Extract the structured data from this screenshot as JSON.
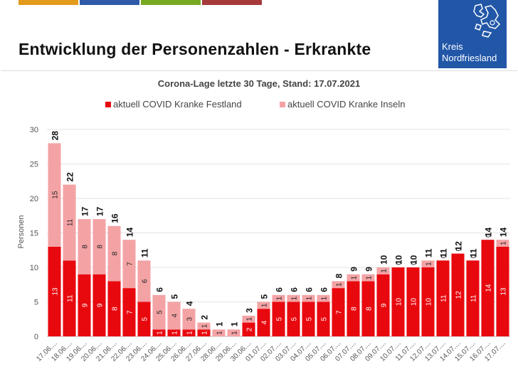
{
  "header": {
    "title": "Entwicklung der Personenzahlen - Erkrankte",
    "bar_colors": [
      "#e39a1b",
      "#2e5aa8",
      "#78a922",
      "#a63a3a"
    ]
  },
  "logo": {
    "line1": "Kreis",
    "line2": "Nordfriesland",
    "color": "#2257a8"
  },
  "chart_data": {
    "type": "bar",
    "stacked": true,
    "title": "Corona-Lage letzte 30 Tage, Stand: 17.07.2021",
    "ylabel": "Personen",
    "xlabel": "",
    "ylim": [
      0,
      30
    ],
    "yticks": [
      0,
      5,
      10,
      15,
      20,
      25,
      30
    ],
    "grid": true,
    "legend_position": "top",
    "categories": [
      "17.06....",
      "18.06....",
      "19.06....",
      "20.06....",
      "21.06....",
      "22.06....",
      "23.06....",
      "24.06....",
      "25.06....",
      "26.06....",
      "27.06....",
      "28.06....",
      "29.06....",
      "30.06....",
      "01.07....",
      "02.07....",
      "03.07....",
      "04.07....",
      "05.07....",
      "06.07....",
      "07.07....",
      "08.07....",
      "09.07....",
      "10.07....",
      "11.07....",
      "12.07....",
      "13.07....",
      "14.07....",
      "15.07....",
      "16.07....",
      "17.07...."
    ],
    "series": [
      {
        "name": "aktuell COVID Kranke Festland",
        "color": "#e8090f",
        "values": [
          13,
          11,
          9,
          9,
          8,
          7,
          5,
          1,
          1,
          1,
          1,
          0,
          0,
          2,
          4,
          5,
          5,
          5,
          5,
          7,
          8,
          8,
          9,
          10,
          10,
          10,
          11,
          12,
          11,
          14,
          13
        ]
      },
      {
        "name": "aktuell COVID Kranke Inseln",
        "color": "#f4a3a5",
        "values": [
          15,
          11,
          8,
          8,
          8,
          7,
          6,
          5,
          4,
          3,
          1,
          1,
          1,
          1,
          1,
          1,
          1,
          1,
          1,
          1,
          1,
          1,
          1,
          0,
          0,
          1,
          0,
          0,
          0,
          0,
          1
        ]
      }
    ],
    "totals": [
      28,
      22,
      17,
      17,
      16,
      14,
      11,
      6,
      5,
      4,
      2,
      1,
      1,
      3,
      5,
      6,
      6,
      6,
      6,
      8,
      9,
      9,
      10,
      10,
      10,
      11,
      11,
      12,
      11,
      14,
      14
    ]
  }
}
